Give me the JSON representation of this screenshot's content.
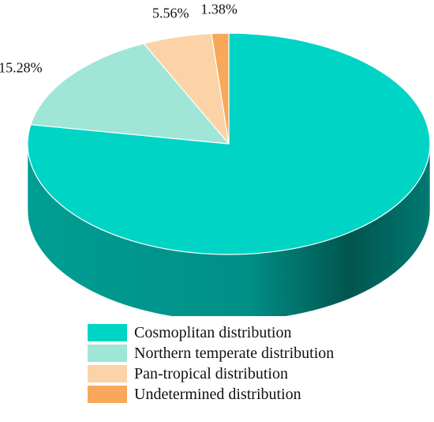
{
  "chart_data": {
    "type": "pie",
    "style": "3d",
    "series": [
      {
        "name": "Cosmoplitan distribution",
        "value": 77.78,
        "label": "77.78%",
        "color": "#00d4c4"
      },
      {
        "name": "Northern temperate distribution",
        "value": 15.28,
        "label": "15.28%",
        "color": "#9fe6d7"
      },
      {
        "name": "Pan-tropical distribution",
        "value": 5.56,
        "label": "5.56%",
        "color": "#fcd2a7"
      },
      {
        "name": "Undetermined distribution",
        "value": 1.38,
        "label": "1.38%",
        "color": "#f9a75a"
      }
    ],
    "legend_position": "bottom"
  }
}
